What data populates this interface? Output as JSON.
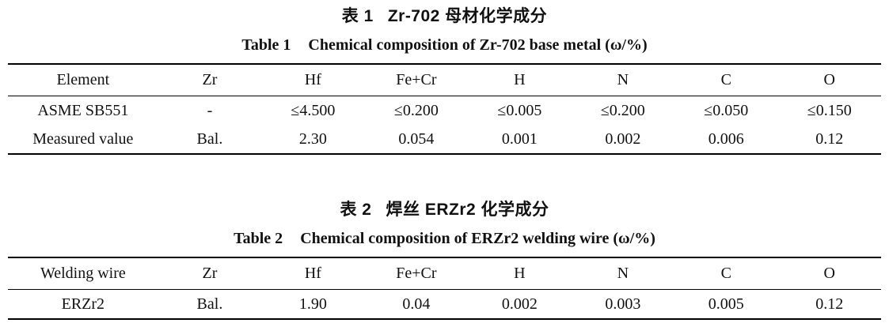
{
  "page": {
    "background": "#ffffff",
    "text_color": "#111111",
    "rule_color": "#000000"
  },
  "tables": [
    {
      "caption_zh": {
        "label": "表 1",
        "title": "Zr-702 母材化学成分"
      },
      "caption_en": {
        "label": "Table 1",
        "title": "Chemical composition of Zr-702 base metal (ω/%)"
      },
      "columns": [
        "Element",
        "Zr",
        "Hf",
        "Fe+Cr",
        "H",
        "N",
        "C",
        "O"
      ],
      "rows": [
        [
          "ASME SB551",
          "-",
          "≤4.500",
          "≤0.200",
          "≤0.005",
          "≤0.200",
          "≤0.050",
          "≤0.150"
        ],
        [
          "Measured value",
          "Bal.",
          "2.30",
          "0.054",
          "0.001",
          "0.002",
          "0.006",
          "0.12"
        ]
      ]
    },
    {
      "caption_zh": {
        "label": "表 2",
        "title": "焊丝 ERZr2 化学成分"
      },
      "caption_en": {
        "label": "Table 2",
        "title": "Chemical composition of ERZr2 welding wire (ω/%)"
      },
      "columns": [
        "Welding wire",
        "Zr",
        "Hf",
        "Fe+Cr",
        "H",
        "N",
        "C",
        "O"
      ],
      "rows": [
        [
          "ERZr2",
          "Bal.",
          "1.90",
          "0.04",
          "0.002",
          "0.003",
          "0.005",
          "0.12"
        ]
      ]
    }
  ]
}
